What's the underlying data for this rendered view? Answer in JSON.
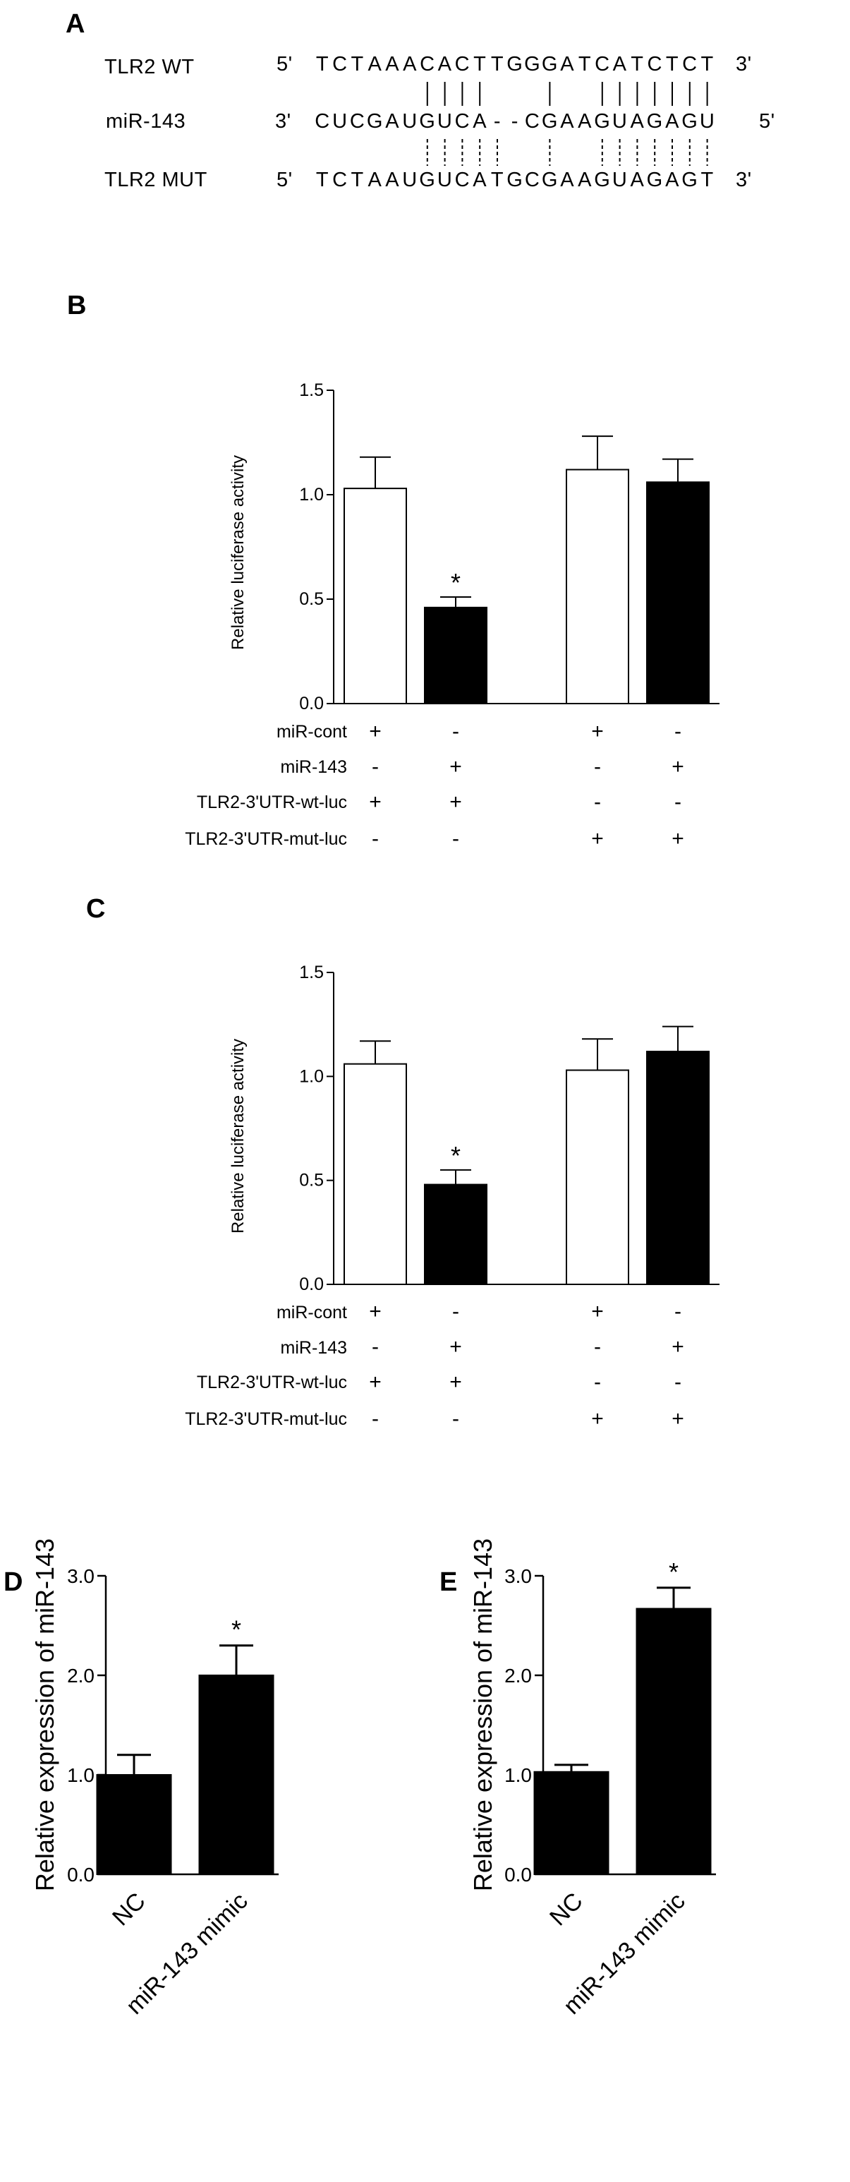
{
  "panel_a": {
    "label": "A",
    "rows": [
      {
        "name": "TLR2 WT",
        "left": "5'",
        "seq": "TCTAAACACTTGGGATCATCTCT",
        "right": "3'"
      },
      {
        "name": "miR-143",
        "left": "3'",
        "seq": "CUCGAUGUCA--CGAAGUAGAGU",
        "right": "5'"
      },
      {
        "name": "TLR2 MUT",
        "left": "5'",
        "seq": "TCTAAUGUCATGCGAAGUAGAGT",
        "right": "3'"
      }
    ],
    "top_pairs": [
      6,
      7,
      8,
      9,
      13,
      16,
      17,
      18,
      19,
      20,
      21,
      22
    ],
    "bottom_pairs": [
      6,
      7,
      8,
      9,
      10,
      13,
      16,
      17,
      18,
      19,
      20,
      21,
      22
    ]
  },
  "chart_data": [
    {
      "id": "B",
      "type": "bar",
      "label": "B",
      "ylabel": "Relative luciferase activity",
      "ylim": [
        0,
        1.5
      ],
      "yticks": [
        "0.0",
        "0.5",
        "1.0",
        "1.5"
      ],
      "values": [
        1.03,
        0.46,
        1.12,
        1.06
      ],
      "errors": [
        0.15,
        0.05,
        0.16,
        0.11
      ],
      "fills": [
        "#ffffff",
        "#000000",
        "#ffffff",
        "#000000"
      ],
      "significance": [
        "",
        "*",
        "",
        ""
      ],
      "condition_rows": [
        {
          "name": "miR-cont",
          "marks": [
            "+",
            "-",
            "+",
            "-"
          ]
        },
        {
          "name": "miR-143",
          "marks": [
            "-",
            "+",
            "-",
            "+"
          ]
        },
        {
          "name": "TLR2-3'UTR-wt-luc",
          "marks": [
            "+",
            "+",
            "-",
            "-"
          ]
        },
        {
          "name": "TLR2-3'UTR-mut-luc",
          "marks": [
            "-",
            "-",
            "+",
            "+"
          ]
        }
      ]
    },
    {
      "id": "C",
      "type": "bar",
      "label": "C",
      "ylabel": "Relative luciferase activity",
      "ylim": [
        0,
        1.5
      ],
      "yticks": [
        "0.0",
        "0.5",
        "1.0",
        "1.5"
      ],
      "values": [
        1.06,
        0.48,
        1.03,
        1.12
      ],
      "errors": [
        0.11,
        0.07,
        0.15,
        0.12
      ],
      "fills": [
        "#ffffff",
        "#000000",
        "#ffffff",
        "#000000"
      ],
      "significance": [
        "",
        "*",
        "",
        ""
      ],
      "condition_rows": [
        {
          "name": "miR-cont",
          "marks": [
            "+",
            "-",
            "+",
            "-"
          ]
        },
        {
          "name": "miR-143",
          "marks": [
            "-",
            "+",
            "-",
            "+"
          ]
        },
        {
          "name": "TLR2-3'UTR-wt-luc",
          "marks": [
            "+",
            "+",
            "-",
            "-"
          ]
        },
        {
          "name": "TLR2-3'UTR-mut-luc",
          "marks": [
            "-",
            "-",
            "+",
            "+"
          ]
        }
      ]
    },
    {
      "id": "D",
      "type": "bar",
      "label": "D",
      "ylabel": "Relative expression of miR-143",
      "ylim": [
        0,
        3.0
      ],
      "yticks": [
        "0.0",
        "1.0",
        "2.0",
        "3.0"
      ],
      "categories": [
        "NC",
        "miR-143 mimic"
      ],
      "values": [
        1.0,
        2.0
      ],
      "errors": [
        0.2,
        0.3
      ],
      "significance": [
        "",
        "*"
      ]
    },
    {
      "id": "E",
      "type": "bar",
      "label": "E",
      "ylabel": "Relative expression of miR-143",
      "ylim": [
        0,
        3.0
      ],
      "yticks": [
        "0.0",
        "1.0",
        "2.0",
        "3.0"
      ],
      "categories": [
        "NC",
        "miR-143 mimic"
      ],
      "values": [
        1.03,
        2.67
      ],
      "errors": [
        0.07,
        0.21
      ],
      "significance": [
        "",
        "*"
      ]
    }
  ]
}
